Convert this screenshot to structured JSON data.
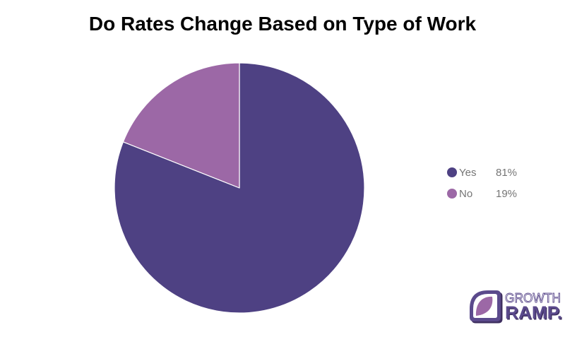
{
  "chart_data": {
    "type": "pie",
    "title": "Do Rates Change Based on Type of Work",
    "slices": [
      {
        "label": "Yes",
        "value": 81,
        "pct_label": "81%",
        "color": "#4e4183"
      },
      {
        "label": "No",
        "value": 19,
        "pct_label": "19%",
        "color": "#9c68a6"
      }
    ],
    "start_angle_deg": 0,
    "direction": "clockwise",
    "legend_position": "right",
    "background": "#ffffff",
    "divider_color": "#ffffff"
  },
  "legend": {
    "text_color": "#757575"
  },
  "logo": {
    "line1": "GROWTH",
    "line2": "RAMP.",
    "purple": "#5b4a8c",
    "dark_purple": "#3f3061",
    "light_purple": "#9c68a6"
  }
}
